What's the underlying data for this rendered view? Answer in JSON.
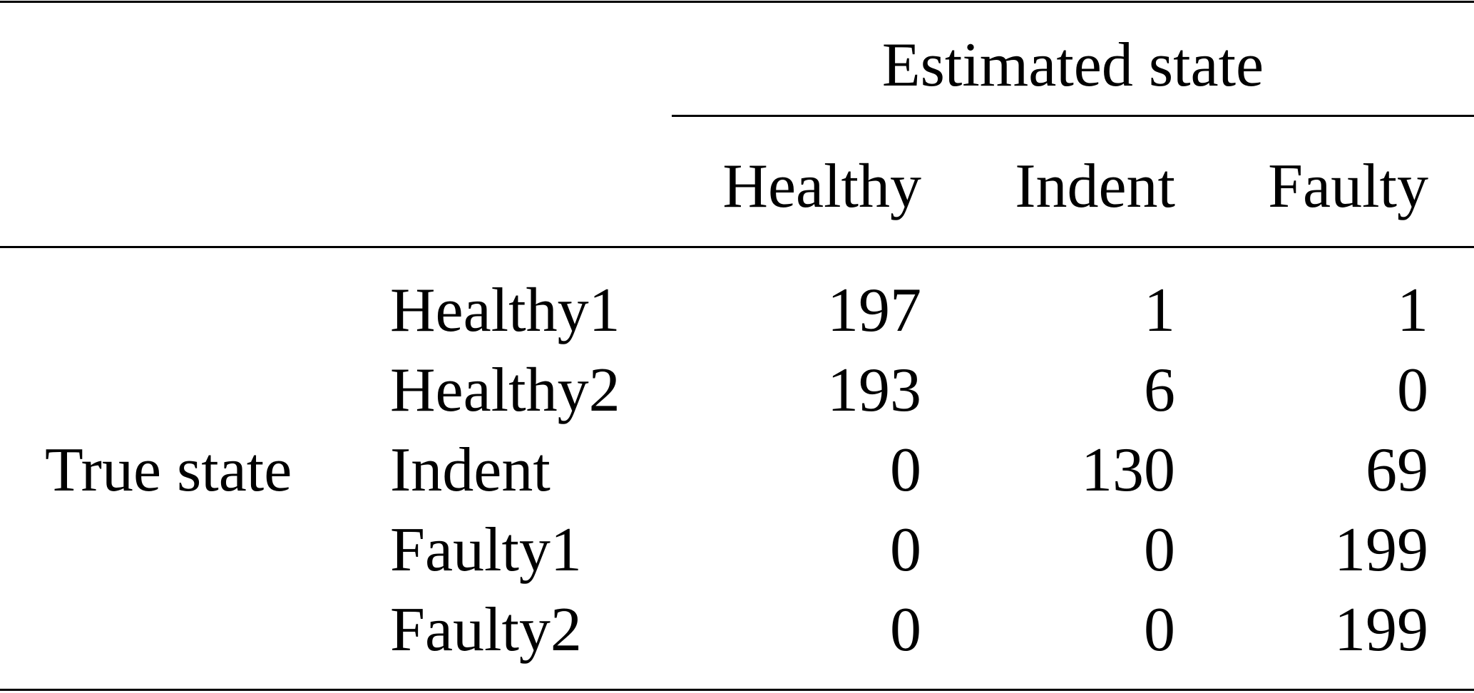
{
  "table": {
    "group_header": "Estimated state",
    "row_group_label": "True state",
    "columns": [
      "Healthy",
      "Indent",
      "Faulty"
    ],
    "rows": [
      {
        "label": "Healthy1",
        "values": [
          "197",
          "1",
          "1"
        ]
      },
      {
        "label": "Healthy2",
        "values": [
          "193",
          "6",
          "0"
        ]
      },
      {
        "label": "Indent",
        "values": [
          "0",
          "130",
          "69"
        ]
      },
      {
        "label": "Faulty1",
        "values": [
          "0",
          "0",
          "199"
        ]
      },
      {
        "label": "Faulty2",
        "values": [
          "0",
          "0",
          "199"
        ]
      }
    ]
  }
}
